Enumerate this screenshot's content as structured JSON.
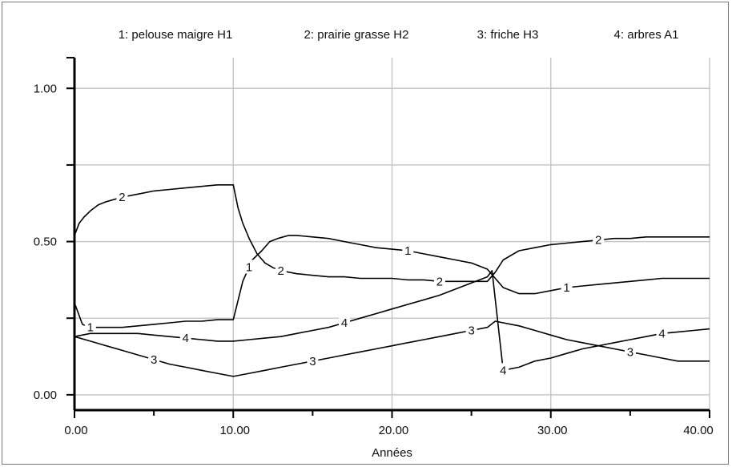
{
  "chart_data": {
    "type": "line",
    "title": "",
    "xlabel": "Années",
    "ylabel": "",
    "xlim": [
      0,
      40
    ],
    "ylim": [
      -0.05,
      1.1
    ],
    "x_ticks": [
      0,
      10,
      20,
      30,
      40
    ],
    "x_tick_labels": [
      "0.00",
      "10.00",
      "20.00",
      "30.00",
      "40.00"
    ],
    "y_ticks": [
      0,
      0.5,
      1.0
    ],
    "y_tick_labels": [
      "0.00",
      "0.50",
      "1.00"
    ],
    "grid": true,
    "legend_placement": "top",
    "series": [
      {
        "name": "1: pelouse maigre H1",
        "marker": "1",
        "x": [
          0,
          0.5,
          1,
          2,
          3,
          4,
          5,
          6,
          7,
          8,
          9,
          10,
          10.6,
          11.2,
          11.8,
          12.3,
          12.8,
          13.5,
          14,
          15,
          16,
          17,
          18,
          19,
          20,
          21,
          22,
          23,
          24,
          25,
          26,
          26.5,
          27,
          27.5,
          28,
          28.5,
          29,
          30,
          31,
          32,
          33,
          34,
          35,
          36,
          37,
          38,
          39,
          40
        ],
        "y": [
          0.3,
          0.23,
          0.22,
          0.22,
          0.22,
          0.225,
          0.23,
          0.235,
          0.24,
          0.24,
          0.245,
          0.245,
          0.37,
          0.44,
          0.47,
          0.5,
          0.51,
          0.52,
          0.52,
          0.515,
          0.51,
          0.5,
          0.49,
          0.48,
          0.475,
          0.47,
          0.46,
          0.45,
          0.44,
          0.43,
          0.41,
          0.38,
          0.35,
          0.34,
          0.33,
          0.33,
          0.33,
          0.34,
          0.35,
          0.355,
          0.36,
          0.365,
          0.37,
          0.375,
          0.38,
          0.38,
          0.38,
          0.38
        ],
        "labels_at": [
          1,
          11,
          21,
          31
        ]
      },
      {
        "name": "2: prairie grasse H2",
        "marker": "2",
        "x": [
          0,
          0.3,
          0.6,
          1,
          1.5,
          2,
          3,
          4,
          5,
          6,
          7,
          8,
          9,
          10,
          10.3,
          10.6,
          11,
          11.5,
          12,
          12.5,
          13,
          14,
          15,
          16,
          17,
          18,
          19,
          20,
          21,
          22,
          23,
          24,
          25,
          26,
          26.5,
          27,
          28,
          29,
          30,
          31,
          32,
          33,
          34,
          35,
          36,
          37,
          38,
          39,
          40
        ],
        "y": [
          0.52,
          0.56,
          0.58,
          0.6,
          0.62,
          0.63,
          0.645,
          0.655,
          0.665,
          0.67,
          0.675,
          0.68,
          0.685,
          0.685,
          0.61,
          0.56,
          0.51,
          0.46,
          0.43,
          0.415,
          0.405,
          0.395,
          0.39,
          0.385,
          0.385,
          0.38,
          0.38,
          0.38,
          0.375,
          0.375,
          0.37,
          0.37,
          0.37,
          0.37,
          0.4,
          0.44,
          0.47,
          0.48,
          0.49,
          0.495,
          0.5,
          0.505,
          0.51,
          0.51,
          0.515,
          0.515,
          0.515,
          0.515,
          0.515
        ],
        "labels_at": [
          3,
          13,
          23,
          33
        ]
      },
      {
        "name": "3: friche H3",
        "marker": "3",
        "x": [
          0,
          1,
          2,
          3,
          4,
          5,
          6,
          7,
          8,
          9,
          10,
          11,
          12,
          13,
          14,
          15,
          16,
          17,
          18,
          19,
          20,
          21,
          22,
          23,
          24,
          25,
          26,
          26.5,
          27,
          28,
          29,
          30,
          31,
          32,
          33,
          34,
          35,
          36,
          37,
          38,
          39,
          40
        ],
        "y": [
          0.19,
          0.175,
          0.16,
          0.145,
          0.13,
          0.115,
          0.1,
          0.09,
          0.08,
          0.07,
          0.06,
          0.07,
          0.08,
          0.09,
          0.1,
          0.11,
          0.12,
          0.13,
          0.14,
          0.15,
          0.16,
          0.17,
          0.18,
          0.19,
          0.2,
          0.21,
          0.22,
          0.24,
          0.235,
          0.225,
          0.21,
          0.195,
          0.18,
          0.17,
          0.16,
          0.15,
          0.14,
          0.13,
          0.12,
          0.11,
          0.11,
          0.11
        ],
        "labels_at": [
          5,
          15,
          25,
          35
        ]
      },
      {
        "name": "4: arbres A1",
        "marker": "4",
        "x": [
          0,
          1,
          2,
          3,
          4,
          5,
          6,
          7,
          8,
          9,
          10,
          11,
          12,
          13,
          14,
          15,
          16,
          17,
          18,
          19,
          20,
          21,
          22,
          23,
          24,
          25,
          26,
          26.3,
          27,
          28,
          29,
          30,
          31,
          32,
          33,
          34,
          35,
          36,
          37,
          38,
          39,
          40
        ],
        "y": [
          0.19,
          0.2,
          0.2,
          0.2,
          0.2,
          0.195,
          0.19,
          0.185,
          0.18,
          0.175,
          0.175,
          0.18,
          0.185,
          0.19,
          0.2,
          0.21,
          0.22,
          0.235,
          0.25,
          0.265,
          0.28,
          0.295,
          0.31,
          0.325,
          0.345,
          0.365,
          0.385,
          0.405,
          0.08,
          0.09,
          0.11,
          0.12,
          0.135,
          0.15,
          0.16,
          0.17,
          0.18,
          0.19,
          0.2,
          0.205,
          0.21,
          0.215
        ],
        "labels_at": [
          7,
          17,
          27,
          37
        ]
      }
    ]
  }
}
